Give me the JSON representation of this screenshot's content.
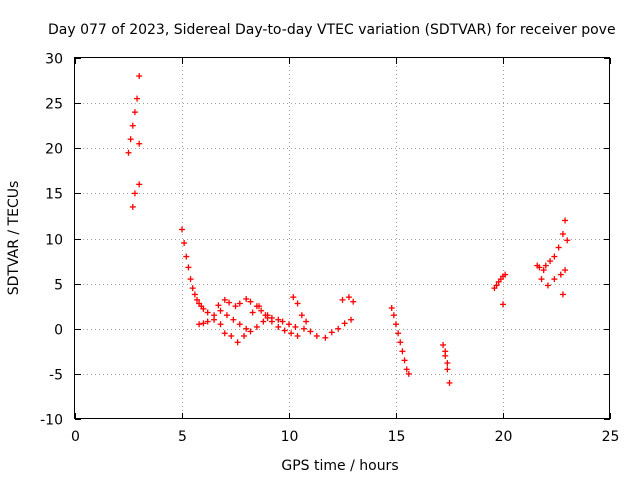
{
  "chart_data": {
    "type": "scatter",
    "title": "Day 077 of 2023, Sidereal Day-to-day VTEC variation (SDTVAR) for receiver pove",
    "xlabel": "GPS time / hours",
    "ylabel": "SDTVAR / TECUs",
    "xlim": [
      0,
      25
    ],
    "ylim": [
      -10,
      30
    ],
    "xticks": [
      0,
      5,
      10,
      15,
      20,
      25
    ],
    "yticks": [
      -10,
      -5,
      0,
      5,
      10,
      15,
      20,
      25,
      30
    ],
    "grid": true,
    "marker": "+",
    "color": "#ff0000",
    "series": [
      {
        "name": "SDTVAR",
        "x": [
          2.5,
          2.6,
          2.7,
          2.8,
          2.9,
          3.0,
          2.7,
          2.8,
          3.0,
          3.0,
          5.0,
          5.1,
          5.2,
          5.3,
          5.4,
          5.5,
          5.6,
          5.7,
          5.8,
          5.9,
          6.0,
          6.2,
          6.5,
          6.7,
          7.0,
          7.2,
          7.5,
          7.7,
          8.0,
          8.2,
          8.5,
          8.7,
          9.0,
          9.2,
          9.5,
          9.7,
          10.0,
          10.3,
          10.7,
          11.0,
          11.3,
          11.7,
          12.0,
          12.3,
          12.6,
          12.9,
          5.8,
          6.0,
          6.2,
          6.5,
          6.8,
          7.0,
          7.3,
          7.6,
          7.9,
          8.2,
          8.5,
          8.8,
          9.0,
          6.8,
          7.1,
          7.4,
          7.7,
          8.0,
          8.3,
          8.6,
          8.9,
          9.2,
          9.5,
          9.8,
          10.1,
          10.4,
          10.2,
          10.4,
          10.6,
          10.8,
          12.5,
          12.8,
          13.0,
          14.8,
          14.9,
          15.0,
          15.1,
          15.2,
          15.3,
          15.4,
          15.5,
          15.6,
          17.2,
          17.3,
          17.4,
          17.5,
          17.3,
          17.4,
          19.6,
          19.7,
          19.8,
          19.9,
          20.0,
          20.1,
          20.0,
          21.6,
          21.7,
          21.9,
          22.0,
          22.2,
          22.4,
          22.6,
          22.8,
          22.9,
          23.0,
          21.8,
          22.1,
          22.4,
          22.7,
          22.9,
          22.8
        ],
        "y": [
          19.5,
          21,
          22.5,
          24,
          25.5,
          28,
          13.5,
          15,
          16,
          20.5,
          11,
          9.5,
          8,
          6.8,
          5.5,
          4.5,
          3.8,
          3.2,
          2.8,
          2.5,
          2.2,
          1.8,
          1.5,
          2.6,
          3.2,
          2.9,
          2.5,
          2.8,
          3.3,
          3.0,
          2.5,
          2.0,
          1.5,
          1.2,
          1.0,
          0.8,
          0.5,
          0.2,
          0.0,
          -0.3,
          -0.8,
          -1.0,
          -0.4,
          0.0,
          0.6,
          1.0,
          0.5,
          0.6,
          0.8,
          1.0,
          0.5,
          -0.5,
          -0.8,
          -1.5,
          -0.8,
          -0.3,
          0.2,
          0.8,
          1.2,
          2.0,
          1.5,
          1.0,
          0.5,
          0.0,
          1.8,
          2.5,
          1.5,
          0.8,
          0.2,
          -0.2,
          -0.5,
          -0.8,
          3.5,
          2.8,
          1.5,
          0.8,
          3.2,
          3.5,
          3.0,
          2.3,
          1.5,
          0.5,
          -0.5,
          -1.5,
          -2.5,
          -3.5,
          -4.5,
          -5.0,
          -1.8,
          -3.0,
          -4.5,
          -6.0,
          -2.5,
          -3.8,
          4.5,
          4.8,
          5.2,
          5.5,
          5.8,
          6.0,
          2.7,
          7.0,
          6.8,
          6.5,
          7.0,
          7.5,
          8.0,
          9.0,
          10.5,
          12.0,
          9.8,
          5.5,
          4.8,
          5.5,
          6.0,
          6.5,
          3.8
        ]
      }
    ]
  }
}
